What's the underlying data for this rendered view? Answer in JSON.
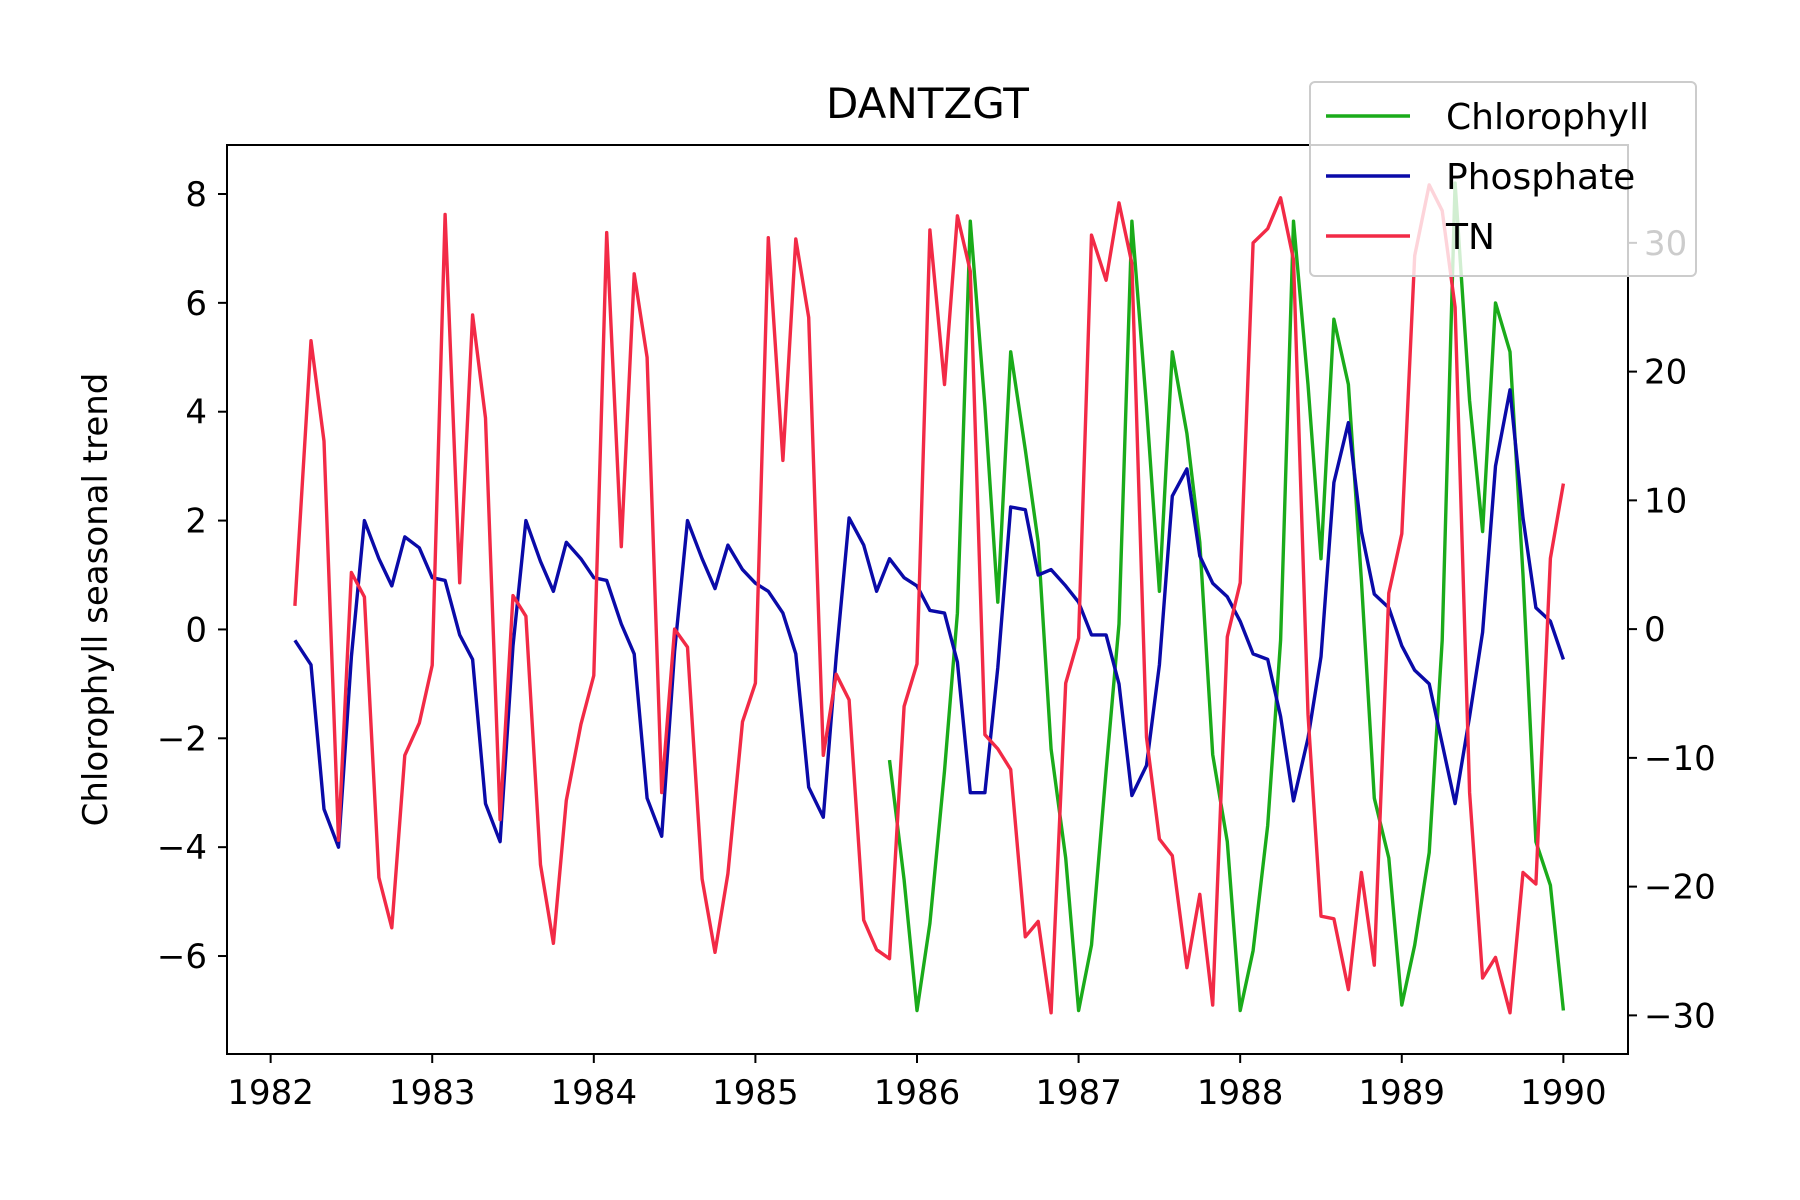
{
  "chart_data": {
    "type": "line",
    "title": "DANTZGT",
    "xlabel": "",
    "ylabel": "Chlorophyll seasonal trend",
    "y2label": "",
    "xlim": [
      1981.73,
      1990.4
    ],
    "ylim": [
      -7.8,
      8.9
    ],
    "y2lim": [
      -33.0,
      37.6
    ],
    "x_ticks": [
      1982,
      1983,
      1984,
      1985,
      1986,
      1987,
      1988,
      1989,
      1990
    ],
    "y_ticks": [
      -6,
      -4,
      -2,
      0,
      2,
      4,
      6,
      8
    ],
    "y2_ticks": [
      -30,
      -20,
      -10,
      0,
      10,
      20,
      30
    ],
    "legend_position": "upper right",
    "grid": false,
    "series": [
      {
        "name": "Chlorophyll",
        "axis": "left",
        "color": "#1aab1a",
        "x": [
          1985.83,
          1985.92,
          1986.0,
          1986.08,
          1986.17,
          1986.25,
          1986.33,
          1986.42,
          1986.5,
          1986.58,
          1986.67,
          1986.75,
          1986.83,
          1986.92,
          1987.0,
          1987.08,
          1987.17,
          1987.25,
          1987.33,
          1987.42,
          1987.5,
          1987.58,
          1987.67,
          1987.75,
          1987.83,
          1987.92,
          1988.0,
          1988.08,
          1988.17,
          1988.25,
          1988.33,
          1988.42,
          1988.5,
          1988.58,
          1988.67,
          1988.75,
          1988.83,
          1988.92,
          1989.0,
          1989.08,
          1989.17,
          1989.25,
          1989.33,
          1989.42,
          1989.5,
          1989.58,
          1989.67,
          1989.75,
          1989.83,
          1989.92,
          1990.0
        ],
        "values": [
          -2.4,
          -4.6,
          -7.0,
          -5.4,
          -2.6,
          0.3,
          7.5,
          4.1,
          0.5,
          5.1,
          3.3,
          1.6,
          -2.2,
          -4.2,
          -7.0,
          -5.8,
          -2.6,
          0.1,
          7.5,
          4.1,
          0.7,
          5.1,
          3.6,
          1.6,
          -2.3,
          -3.9,
          -7.0,
          -5.9,
          -3.6,
          -0.2,
          7.5,
          4.5,
          1.3,
          5.7,
          4.5,
          0.9,
          -3.1,
          -4.2,
          -6.9,
          -5.8,
          -4.1,
          -0.2,
          8.2,
          4.2,
          1.8,
          6.0,
          5.1,
          1.0,
          -3.9,
          -4.7,
          -7.0
        ]
      },
      {
        "name": "Phosphate",
        "axis": "left",
        "color": "#0a0aa8",
        "x": [
          1982.15,
          1982.25,
          1982.33,
          1982.42,
          1982.5,
          1982.58,
          1982.67,
          1982.75,
          1982.83,
          1982.92,
          1983.0,
          1983.08,
          1983.17,
          1983.25,
          1983.33,
          1983.42,
          1983.5,
          1983.58,
          1983.67,
          1983.75,
          1983.83,
          1983.92,
          1984.0,
          1984.08,
          1984.17,
          1984.25,
          1984.33,
          1984.42,
          1984.5,
          1984.58,
          1984.67,
          1984.75,
          1984.83,
          1984.92,
          1985.0,
          1985.08,
          1985.17,
          1985.25,
          1985.33,
          1985.42,
          1985.5,
          1985.58,
          1985.67,
          1985.75,
          1985.83,
          1985.92,
          1986.0,
          1986.08,
          1986.17,
          1986.25,
          1986.33,
          1986.42,
          1986.5,
          1986.58,
          1986.67,
          1986.75,
          1986.83,
          1986.92,
          1987.0,
          1987.08,
          1987.17,
          1987.25,
          1987.33,
          1987.42,
          1987.5,
          1987.58,
          1987.67,
          1987.75,
          1987.83,
          1987.92,
          1988.0,
          1988.08,
          1988.17,
          1988.25,
          1988.33,
          1988.42,
          1988.5,
          1988.58,
          1988.67,
          1988.75,
          1988.83,
          1988.92,
          1989.0,
          1989.08,
          1989.17,
          1989.25,
          1989.33,
          1989.42,
          1989.5,
          1989.58,
          1989.67,
          1989.75,
          1989.83,
          1989.92,
          1990.0
        ],
        "values": [
          -0.2,
          -0.65,
          -3.3,
          -4.0,
          -0.5,
          2.0,
          1.3,
          0.8,
          1.7,
          1.5,
          0.95,
          0.9,
          -0.1,
          -0.55,
          -3.2,
          -3.9,
          -0.3,
          2.0,
          1.25,
          0.7,
          1.6,
          1.3,
          0.95,
          0.9,
          0.1,
          -0.45,
          -3.1,
          -3.8,
          -0.4,
          2.0,
          1.3,
          0.75,
          1.55,
          1.1,
          0.85,
          0.7,
          0.3,
          -0.45,
          -2.9,
          -3.45,
          -0.5,
          2.05,
          1.55,
          0.7,
          1.3,
          0.95,
          0.8,
          0.35,
          0.3,
          -0.6,
          -3.0,
          -3.0,
          -0.7,
          2.25,
          2.2,
          1.0,
          1.1,
          0.8,
          0.5,
          -0.1,
          -0.1,
          -1.0,
          -3.05,
          -2.5,
          -0.65,
          2.45,
          2.95,
          1.35,
          0.85,
          0.6,
          0.15,
          -0.45,
          -0.55,
          -1.6,
          -3.15,
          -2.0,
          -0.5,
          2.7,
          3.8,
          1.8,
          0.65,
          0.4,
          -0.3,
          -0.75,
          -1.0,
          -2.1,
          -3.2,
          -1.6,
          -0.05,
          3.0,
          4.4,
          2.05,
          0.4,
          0.15,
          -0.55
        ]
      },
      {
        "name": "TN",
        "axis": "right",
        "color": "#f22a46",
        "x": [
          1982.15,
          1982.25,
          1982.33,
          1982.42,
          1982.5,
          1982.58,
          1982.67,
          1982.75,
          1982.83,
          1982.92,
          1983.0,
          1983.08,
          1983.17,
          1983.25,
          1983.33,
          1983.42,
          1983.5,
          1983.58,
          1983.67,
          1983.75,
          1983.83,
          1983.92,
          1984.0,
          1984.08,
          1984.17,
          1984.25,
          1984.33,
          1984.42,
          1984.5,
          1984.58,
          1984.67,
          1984.75,
          1984.83,
          1984.92,
          1985.0,
          1985.08,
          1985.17,
          1985.25,
          1985.33,
          1985.42,
          1985.5,
          1985.58,
          1985.67,
          1985.75,
          1985.83,
          1985.92,
          1986.0,
          1986.08,
          1986.17,
          1986.25,
          1986.33,
          1986.42,
          1986.5,
          1986.58,
          1986.67,
          1986.75,
          1986.83,
          1986.92,
          1987.0,
          1987.08,
          1987.17,
          1987.25,
          1987.33,
          1987.42,
          1987.5,
          1987.58,
          1987.67,
          1987.75,
          1987.83,
          1987.92,
          1988.0,
          1988.08,
          1988.17,
          1988.25,
          1988.33,
          1988.42,
          1988.5,
          1988.58,
          1988.67,
          1988.75,
          1988.83,
          1988.92,
          1989.0,
          1989.08,
          1989.17,
          1989.25,
          1989.33,
          1989.42,
          1989.5,
          1989.58,
          1989.67,
          1989.75,
          1989.83,
          1989.92,
          1990.0
        ],
        "values": [
          1.8,
          22.4,
          14.6,
          -16.4,
          4.4,
          2.5,
          -19.3,
          -23.2,
          -9.8,
          -7.3,
          -2.8,
          32.2,
          3.6,
          24.4,
          16.4,
          -14.8,
          2.6,
          1.0,
          -18.3,
          -24.4,
          -13.3,
          -7.4,
          -3.6,
          30.8,
          6.4,
          27.6,
          21.1,
          -12.7,
          0.0,
          -1.4,
          -19.4,
          -25.1,
          -19.0,
          -7.2,
          -4.2,
          30.4,
          13.1,
          30.3,
          24.2,
          -9.8,
          -3.5,
          -5.5,
          -22.6,
          -24.9,
          -25.6,
          -6.0,
          -2.7,
          31.0,
          19.0,
          32.1,
          27.8,
          -8.2,
          -9.3,
          -10.9,
          -23.9,
          -22.7,
          -29.8,
          -4.2,
          -0.7,
          30.6,
          27.1,
          33.1,
          28.4,
          -8.4,
          -16.3,
          -17.6,
          -26.3,
          -20.6,
          -29.2,
          -0.6,
          3.6,
          30.0,
          31.1,
          33.5,
          28.7,
          -6.6,
          -22.3,
          -22.5,
          -28.0,
          -18.9,
          -26.1,
          2.8,
          7.4,
          29.0,
          34.5,
          32.5,
          25.0,
          -12.7,
          -27.1,
          -25.5,
          -29.8,
          -18.9,
          -19.8,
          5.5,
          11.3
        ]
      }
    ]
  }
}
